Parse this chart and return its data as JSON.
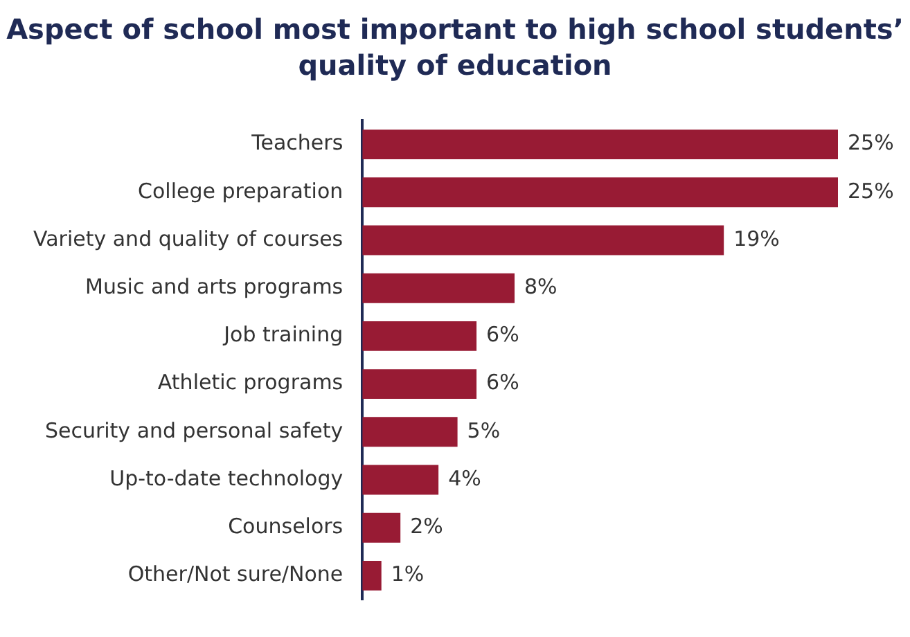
{
  "chart_data": {
    "type": "bar",
    "orientation": "horizontal",
    "title": "Aspect of school most important to high school students’ quality of education",
    "categories": [
      "Teachers",
      "College preparation",
      "Variety and quality of courses",
      "Music and arts programs",
      "Job training",
      "Athletic programs",
      "Security and personal safety",
      "Up-to-date technology",
      "Counselors",
      "Other/Not sure/None"
    ],
    "values": [
      25,
      25,
      19,
      8,
      6,
      6,
      5,
      4,
      2,
      1
    ],
    "value_labels": [
      "25%",
      "25%",
      "19%",
      "8%",
      "6%",
      "6%",
      "5%",
      "4%",
      "2%",
      "1%"
    ],
    "color": "#981b34",
    "grid": false,
    "legend": false
  }
}
